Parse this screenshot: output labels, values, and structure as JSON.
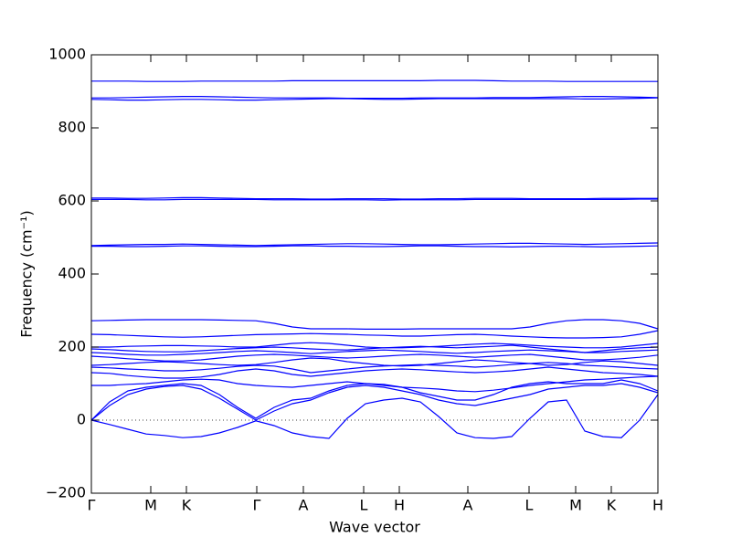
{
  "chart_data": {
    "type": "line",
    "xlabel": "Wave vector",
    "ylabel": "Frequency (cm⁻¹)",
    "x": [
      0,
      2,
      4,
      6,
      8,
      10,
      12,
      14,
      16,
      18,
      20,
      22,
      24,
      26,
      28,
      30,
      32,
      34,
      36,
      38,
      40,
      42,
      44,
      46,
      48,
      50,
      52,
      54,
      56,
      58,
      60,
      62
    ],
    "xlim": [
      0,
      62
    ],
    "xticks": [
      {
        "value": 0,
        "label": "Γ"
      },
      {
        "value": 6.5,
        "label": "M"
      },
      {
        "value": 10.4,
        "label": "K"
      },
      {
        "value": 18.1,
        "label": "Γ"
      },
      {
        "value": 23.2,
        "label": "A"
      },
      {
        "value": 29.8,
        "label": "L"
      },
      {
        "value": 33.7,
        "label": "H"
      },
      {
        "value": 41.2,
        "label": "A"
      },
      {
        "value": 47.9,
        "label": "L"
      },
      {
        "value": 53,
        "label": "M"
      },
      {
        "value": 56.9,
        "label": "K"
      },
      {
        "value": 62,
        "label": "H"
      }
    ],
    "ylim": [
      -200,
      1000
    ],
    "yticks": [
      {
        "value": -200,
        "label": "−200"
      },
      0,
      200,
      400,
      600,
      800,
      1000
    ],
    "zero_line": true,
    "series": [
      {
        "color": "#0000ff",
        "values": [
          0,
          -12,
          -25,
          -38,
          -42,
          -48,
          -45,
          -35,
          -20,
          -2,
          -15,
          -35,
          -45,
          -50,
          5,
          45,
          55,
          60,
          50,
          10,
          -35,
          -48,
          -50,
          -45,
          5,
          50,
          55,
          -30,
          -45,
          -48,
          0,
          70
        ]
      },
      {
        "color": "#0000ff",
        "values": [
          0,
          40,
          70,
          85,
          92,
          95,
          85,
          60,
          30,
          0,
          25,
          45,
          55,
          75,
          90,
          95,
          90,
          80,
          70,
          55,
          45,
          40,
          50,
          60,
          70,
          85,
          90,
          95,
          95,
          100,
          90,
          75
        ]
      },
      {
        "color": "#0000ff",
        "values": [
          0,
          50,
          80,
          90,
          95,
          100,
          95,
          70,
          35,
          5,
          35,
          55,
          60,
          80,
          95,
          100,
          98,
          90,
          75,
          65,
          55,
          55,
          70,
          90,
          100,
          105,
          100,
          100,
          100,
          110,
          100,
          80
        ]
      },
      {
        "color": "#0000ff",
        "values": [
          95,
          95,
          98,
          100,
          105,
          110,
          112,
          110,
          100,
          95,
          92,
          90,
          95,
          100,
          105,
          100,
          95,
          90,
          88,
          85,
          80,
          78,
          82,
          88,
          95,
          100,
          105,
          110,
          112,
          115,
          118,
          120
        ]
      },
      {
        "color": "#0000ff",
        "values": [
          130,
          128,
          122,
          118,
          115,
          115,
          118,
          125,
          135,
          140,
          135,
          125,
          120,
          125,
          130,
          135,
          138,
          140,
          138,
          135,
          132,
          130,
          132,
          135,
          140,
          145,
          140,
          135,
          130,
          128,
          125,
          120
        ]
      },
      {
        "color": "#0000ff",
        "values": [
          145,
          143,
          140,
          138,
          135,
          135,
          138,
          142,
          147,
          150,
          148,
          140,
          130,
          135,
          140,
          145,
          148,
          150,
          152,
          150,
          148,
          145,
          148,
          152,
          155,
          158,
          155,
          150,
          148,
          145,
          142,
          140
        ]
      },
      {
        "color": "#0000ff",
        "values": [
          150,
          152,
          155,
          158,
          160,
          158,
          155,
          152,
          150,
          152,
          158,
          165,
          170,
          168,
          160,
          155,
          150,
          148,
          150,
          155,
          160,
          165,
          162,
          158,
          155,
          150,
          152,
          158,
          162,
          160,
          155,
          150
        ]
      },
      {
        "color": "#0000ff",
        "values": [
          175,
          172,
          168,
          165,
          162,
          162,
          165,
          170,
          175,
          178,
          180,
          178,
          175,
          172,
          170,
          172,
          175,
          178,
          180,
          178,
          175,
          172,
          175,
          178,
          180,
          175,
          170,
          165,
          165,
          168,
          172,
          178
        ]
      },
      {
        "color": "#0000ff",
        "values": [
          185,
          183,
          180,
          178,
          178,
          180,
          182,
          185,
          188,
          190,
          188,
          185,
          182,
          185,
          188,
          190,
          192,
          190,
          188,
          185,
          183,
          185,
          188,
          190,
          192,
          190,
          188,
          185,
          185,
          188,
          190,
          192
        ]
      },
      {
        "color": "#0000ff",
        "values": [
          195,
          193,
          190,
          188,
          187,
          187,
          190,
          193,
          196,
          198,
          200,
          198,
          195,
          193,
          192,
          195,
          198,
          200,
          202,
          200,
          198,
          200,
          202,
          205,
          200,
          195,
          190,
          185,
          190,
          195,
          198,
          200
        ]
      },
      {
        "color": "#0000ff",
        "values": [
          200,
          200,
          202,
          203,
          204,
          204,
          203,
          202,
          200,
          200,
          205,
          210,
          212,
          210,
          205,
          200,
          198,
          198,
          200,
          202,
          205,
          208,
          210,
          208,
          205,
          202,
          200,
          198,
          198,
          200,
          205,
          210
        ]
      },
      {
        "color": "#0000ff",
        "values": [
          235,
          234,
          232,
          230,
          228,
          227,
          228,
          230,
          232,
          234,
          235,
          236,
          237,
          236,
          235,
          233,
          232,
          230,
          230,
          232,
          234,
          235,
          233,
          230,
          228,
          226,
          225,
          225,
          226,
          228,
          235,
          245
        ]
      },
      {
        "color": "#0000ff",
        "values": [
          272,
          273,
          274,
          275,
          275,
          275,
          275,
          274,
          273,
          272,
          265,
          255,
          250,
          250,
          250,
          249,
          249,
          249,
          250,
          250,
          250,
          250,
          250,
          250,
          255,
          265,
          272,
          275,
          275,
          272,
          265,
          250
        ]
      },
      {
        "color": "#0000ff",
        "values": [
          478,
          479,
          480,
          481,
          481,
          482,
          481,
          480,
          479,
          478,
          479,
          480,
          481,
          482,
          483,
          483,
          482,
          481,
          480,
          480,
          481,
          482,
          483,
          484,
          484,
          483,
          482,
          481,
          482,
          483,
          484,
          485
        ]
      },
      {
        "color": "#0000ff",
        "values": [
          476,
          476,
          475,
          475,
          476,
          477,
          477,
          476,
          475,
          475,
          476,
          477,
          477,
          476,
          476,
          475,
          475,
          476,
          477,
          477,
          476,
          475,
          475,
          474,
          475,
          476,
          476,
          475,
          474,
          475,
          476,
          477
        ]
      },
      {
        "color": "#0000ff",
        "values": [
          608,
          608,
          607,
          607,
          608,
          609,
          609,
          608,
          607,
          606,
          606,
          606,
          605,
          605,
          606,
          606,
          606,
          605,
          605,
          606,
          606,
          607,
          607,
          607,
          606,
          606,
          606,
          606,
          607,
          607,
          607,
          607
        ]
      },
      {
        "color": "#0000ff",
        "values": [
          604,
          604,
          604,
          603,
          603,
          604,
          604,
          604,
          604,
          604,
          603,
          603,
          603,
          603,
          603,
          603,
          602,
          603,
          603,
          603,
          603,
          604,
          604,
          604,
          604,
          604,
          604,
          604,
          604,
          604,
          605,
          605
        ]
      },
      {
        "color": "#0000ff",
        "values": [
          882,
          882,
          883,
          884,
          885,
          886,
          886,
          885,
          884,
          883,
          882,
          882,
          882,
          882,
          881,
          881,
          881,
          881,
          882,
          882,
          882,
          882,
          883,
          883,
          883,
          884,
          885,
          886,
          886,
          885,
          884,
          883
        ]
      },
      {
        "color": "#0000ff",
        "values": [
          878,
          877,
          876,
          876,
          877,
          878,
          878,
          877,
          876,
          876,
          877,
          878,
          879,
          880,
          880,
          879,
          878,
          878,
          879,
          880,
          880,
          880,
          880,
          880,
          880,
          880,
          880,
          879,
          879,
          880,
          881,
          882
        ]
      },
      {
        "color": "#0000ff",
        "values": [
          928,
          928,
          928,
          927,
          927,
          927,
          928,
          928,
          928,
          928,
          928,
          929,
          929,
          929,
          929,
          929,
          929,
          929,
          929,
          930,
          930,
          930,
          929,
          928,
          928,
          928,
          927,
          927,
          927,
          927,
          927,
          927
        ]
      }
    ]
  }
}
